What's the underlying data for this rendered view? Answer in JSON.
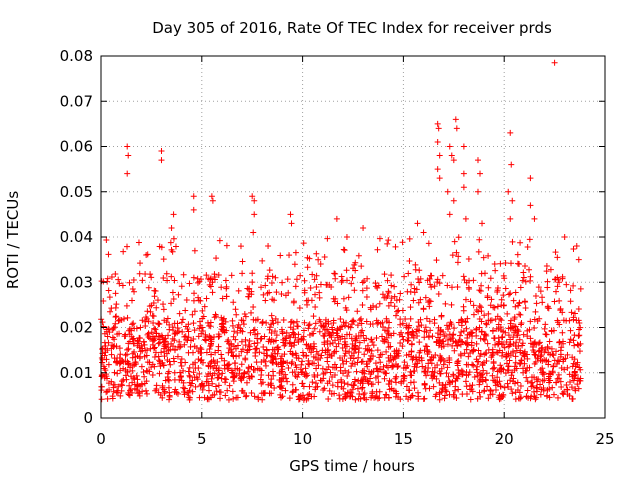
{
  "chart_data": {
    "type": "scatter",
    "title": "Day 305 of 2016, Rate Of TEC Index for receiver prds",
    "xlabel": "GPS time / hours",
    "ylabel": "ROTI / TECUs",
    "xlim": [
      0,
      25
    ],
    "ylim": [
      0,
      0.08
    ],
    "x_ticks": [
      0,
      5,
      10,
      15,
      20,
      25
    ],
    "x_tick_labels": [
      "0",
      "5",
      "10",
      "15",
      "20",
      "25"
    ],
    "y_ticks": [
      0,
      0.01,
      0.02,
      0.03,
      0.04,
      0.05,
      0.06,
      0.07,
      0.08
    ],
    "y_tick_labels": [
      "0",
      "0.01",
      "0.02",
      "0.03",
      "0.04",
      "0.05",
      "0.06",
      "0.07",
      "0.08"
    ],
    "grid": true,
    "marker": "+",
    "color": "#ff0000",
    "data_range": [
      0.0,
      23.8
    ],
    "series": [
      {
        "name": "ROTI",
        "core_band": [
          0.004,
          0.022
        ],
        "notable_points": [
          {
            "x": 1.3,
            "y": 0.06
          },
          {
            "x": 1.35,
            "y": 0.058
          },
          {
            "x": 1.3,
            "y": 0.054
          },
          {
            "x": 3.0,
            "y": 0.059
          },
          {
            "x": 3.0,
            "y": 0.057
          },
          {
            "x": 3.6,
            "y": 0.045
          },
          {
            "x": 3.5,
            "y": 0.042
          },
          {
            "x": 4.6,
            "y": 0.049
          },
          {
            "x": 4.6,
            "y": 0.046
          },
          {
            "x": 5.5,
            "y": 0.049
          },
          {
            "x": 5.55,
            "y": 0.048
          },
          {
            "x": 7.5,
            "y": 0.049
          },
          {
            "x": 7.6,
            "y": 0.048
          },
          {
            "x": 7.6,
            "y": 0.045
          },
          {
            "x": 7.55,
            "y": 0.041
          },
          {
            "x": 9.4,
            "y": 0.045
          },
          {
            "x": 9.45,
            "y": 0.043
          },
          {
            "x": 11.7,
            "y": 0.044
          },
          {
            "x": 12.2,
            "y": 0.04
          },
          {
            "x": 13.0,
            "y": 0.042
          },
          {
            "x": 15.7,
            "y": 0.043
          },
          {
            "x": 16.0,
            "y": 0.041
          },
          {
            "x": 16.7,
            "y": 0.065
          },
          {
            "x": 16.75,
            "y": 0.064
          },
          {
            "x": 16.7,
            "y": 0.061
          },
          {
            "x": 16.8,
            "y": 0.058
          },
          {
            "x": 16.7,
            "y": 0.055
          },
          {
            "x": 16.8,
            "y": 0.053
          },
          {
            "x": 17.3,
            "y": 0.06
          },
          {
            "x": 17.4,
            "y": 0.058
          },
          {
            "x": 17.6,
            "y": 0.066
          },
          {
            "x": 17.65,
            "y": 0.064
          },
          {
            "x": 17.5,
            "y": 0.057
          },
          {
            "x": 17.2,
            "y": 0.05
          },
          {
            "x": 17.5,
            "y": 0.048
          },
          {
            "x": 17.3,
            "y": 0.045
          },
          {
            "x": 18.0,
            "y": 0.054
          },
          {
            "x": 18.0,
            "y": 0.051
          },
          {
            "x": 18.0,
            "y": 0.06
          },
          {
            "x": 18.1,
            "y": 0.044
          },
          {
            "x": 18.7,
            "y": 0.057
          },
          {
            "x": 18.8,
            "y": 0.054
          },
          {
            "x": 18.7,
            "y": 0.05
          },
          {
            "x": 18.9,
            "y": 0.043
          },
          {
            "x": 20.3,
            "y": 0.063
          },
          {
            "x": 20.35,
            "y": 0.056
          },
          {
            "x": 20.2,
            "y": 0.05
          },
          {
            "x": 20.4,
            "y": 0.048
          },
          {
            "x": 20.3,
            "y": 0.044
          },
          {
            "x": 21.3,
            "y": 0.053
          },
          {
            "x": 21.3,
            "y": 0.047
          },
          {
            "x": 21.5,
            "y": 0.044
          },
          {
            "x": 22.5,
            "y": 0.0785
          },
          {
            "x": 23.0,
            "y": 0.04
          },
          {
            "x": 23.6,
            "y": 0.038
          },
          {
            "x": 23.7,
            "y": 0.035
          }
        ]
      }
    ]
  }
}
